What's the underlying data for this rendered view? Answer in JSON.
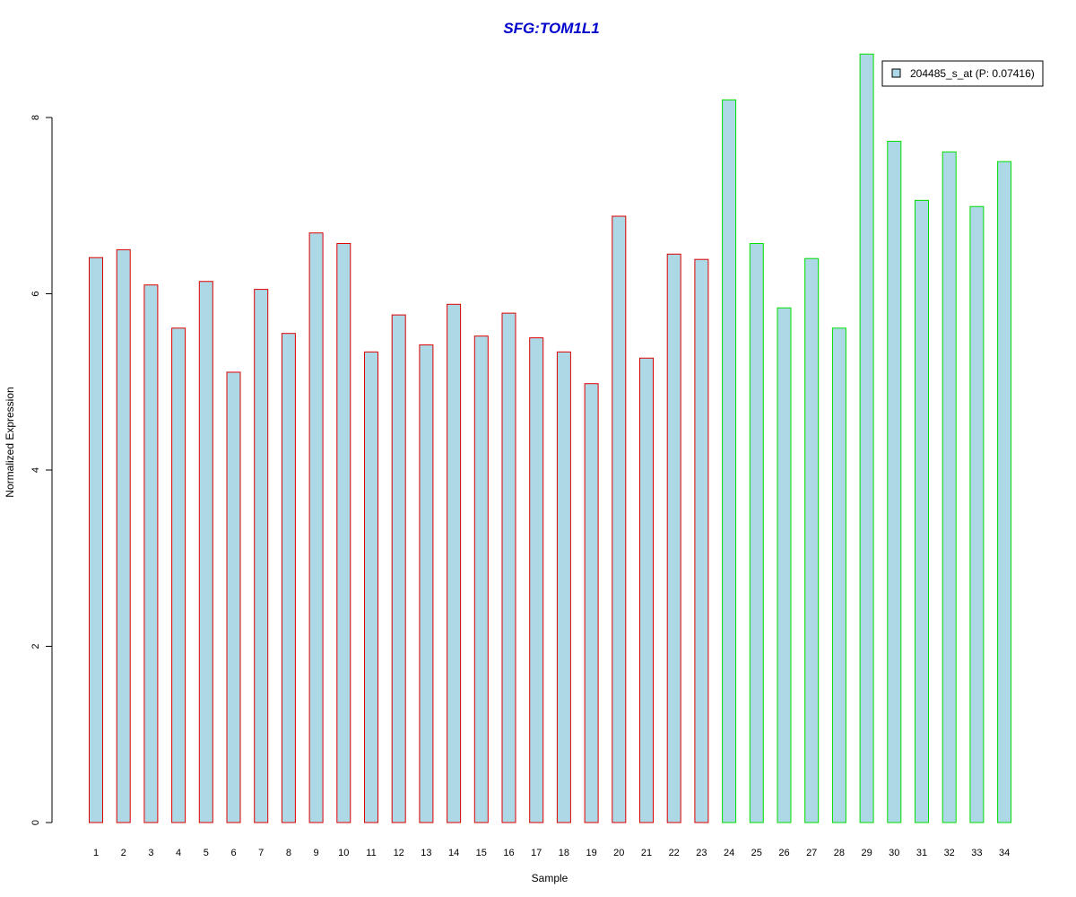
{
  "chart_data": {
    "type": "bar",
    "title": "SFG:TOM1L1",
    "xlabel": "Sample",
    "ylabel": "Normalized Expression",
    "ylim": [
      0,
      8.8
    ],
    "yticks": [
      0,
      2,
      4,
      6,
      8
    ],
    "categories": [
      "1",
      "2",
      "3",
      "4",
      "5",
      "6",
      "7",
      "8",
      "9",
      "10",
      "11",
      "12",
      "13",
      "14",
      "15",
      "16",
      "17",
      "18",
      "19",
      "20",
      "21",
      "22",
      "23",
      "24",
      "25",
      "26",
      "27",
      "28",
      "29",
      "30",
      "31",
      "32",
      "33",
      "34"
    ],
    "series": [
      {
        "name": "204485_s_at (P: 0.07416)",
        "values": [
          6.41,
          6.5,
          6.1,
          5.61,
          6.14,
          5.11,
          6.05,
          5.55,
          6.69,
          6.57,
          5.34,
          5.76,
          5.42,
          5.88,
          5.52,
          5.78,
          5.5,
          5.34,
          4.98,
          6.88,
          5.27,
          6.45,
          6.39,
          8.2,
          6.57,
          5.84,
          6.4,
          5.61,
          8.72,
          7.73,
          7.06,
          7.61,
          6.99,
          7.5
        ]
      }
    ],
    "groups": [
      1,
      1,
      1,
      1,
      1,
      1,
      1,
      1,
      1,
      1,
      1,
      1,
      1,
      1,
      1,
      1,
      1,
      1,
      1,
      1,
      1,
      1,
      1,
      2,
      2,
      2,
      2,
      2,
      2,
      2,
      2,
      2,
      2,
      2
    ],
    "legend_placement": "top-right",
    "grid": false,
    "colors": {
      "fill": "#add8e6",
      "group1_border": "#dd0000",
      "group2_border": "#00dd00",
      "title": "#0000cc",
      "legend_border": "#000000"
    }
  }
}
